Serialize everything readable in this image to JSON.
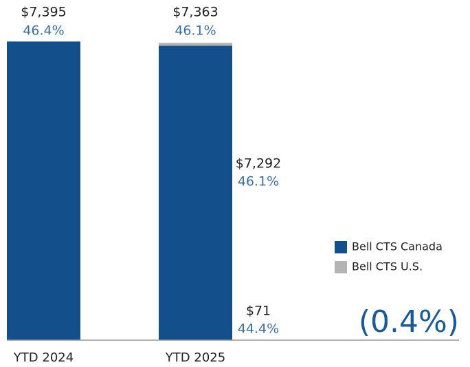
{
  "chart_data": {
    "type": "stacked_bar",
    "categories": [
      "YTD 2024",
      "YTD 2025"
    ],
    "series": [
      {
        "name": "Bell CTS Canada",
        "color": "#13508b",
        "values": [
          7395,
          7292
        ],
        "value_labels": [
          null,
          "$7,292"
        ],
        "margins": [
          null,
          46.1
        ],
        "margin_labels": [
          null,
          "46.1%"
        ]
      },
      {
        "name": "Bell CTS U.S.",
        "color": "#b4b4b4",
        "values": [
          null,
          71
        ],
        "value_labels": [
          null,
          "$71"
        ],
        "margins": [
          null,
          44.4
        ],
        "margin_labels": [
          null,
          "44.4%"
        ]
      }
    ],
    "totals": [
      7395,
      7363
    ],
    "total_labels": [
      "$7,395",
      "$7,363"
    ],
    "margins": [
      46.4,
      46.1
    ],
    "margin_labels": [
      "46.4%",
      "46.1%"
    ],
    "annotation": "(0.4%)",
    "ylim": [
      0,
      7400
    ],
    "legend": "right"
  }
}
